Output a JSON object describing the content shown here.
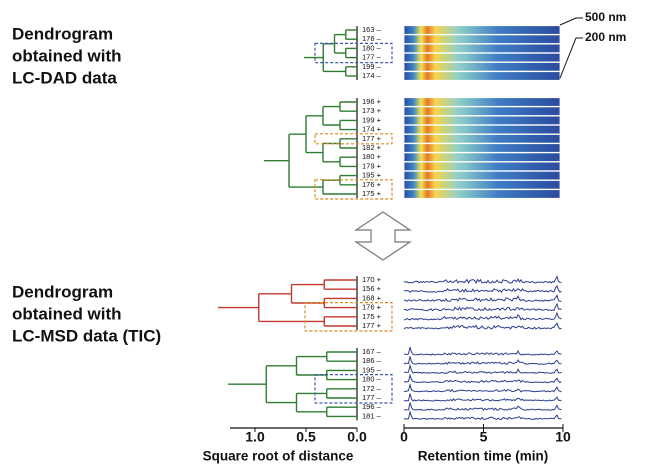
{
  "headings": [
    [
      "Dendrogram",
      "obtained with",
      "LC-DAD data"
    ],
    [
      "Dendrogram",
      "obtained with",
      "LC-MSD data (TIC)"
    ]
  ],
  "wavelengths": [
    "500 nm",
    "200 nm"
  ],
  "groups": [
    {
      "kind": "heatmap",
      "tree_color": "#2e7d32",
      "samples": [
        {
          "label": "163 –"
        },
        {
          "label": "176 –"
        },
        {
          "label": "180 –",
          "highlight": true
        },
        {
          "label": "177 –",
          "highlight": true
        },
        {
          "label": "199 –"
        },
        {
          "label": "174 –"
        }
      ],
      "boxes": [
        {
          "from": 2,
          "to": 3,
          "color": "#3b5bab"
        }
      ]
    },
    {
      "kind": "heatmap",
      "tree_color": "#2e7d32",
      "samples": [
        {
          "label": "196 +"
        },
        {
          "label": "173 +"
        },
        {
          "label": "199 +"
        },
        {
          "label": "174 +"
        },
        {
          "label": "177 +",
          "highlight": true
        },
        {
          "label": "182 +"
        },
        {
          "label": "180 +"
        },
        {
          "label": "179 +"
        },
        {
          "label": "195 +"
        },
        {
          "label": "176 +",
          "highlight": true
        },
        {
          "label": "175 +",
          "highlight": true
        }
      ],
      "boxes": [
        {
          "from": 4,
          "to": 4,
          "color": "#e08a1e"
        },
        {
          "from": 9,
          "to": 10,
          "color": "#e08a1e"
        }
      ]
    },
    {
      "kind": "chromatogram",
      "tree_color": "#c0392b",
      "samples": [
        {
          "label": "170 +"
        },
        {
          "label": "156 +"
        },
        {
          "label": "168 +"
        },
        {
          "label": "176 +",
          "highlight": true
        },
        {
          "label": "175 +",
          "highlight": true
        },
        {
          "label": "177 +",
          "highlight": true
        }
      ],
      "boxes": [
        {
          "from": 3,
          "to": 5,
          "color": "#e08a1e"
        }
      ]
    },
    {
      "kind": "chromatogram",
      "tree_color": "#2e7d32",
      "samples": [
        {
          "label": "167 –"
        },
        {
          "label": "186 –"
        },
        {
          "label": "195 –"
        },
        {
          "label": "180 –",
          "highlight": true
        },
        {
          "label": "172 –"
        },
        {
          "label": "177 –",
          "highlight": true
        },
        {
          "label": "196 –"
        },
        {
          "label": "181 –"
        }
      ],
      "boxes": [
        {
          "from": 3,
          "to": 5,
          "color": "#3b5bab"
        }
      ]
    }
  ],
  "distance_axis": {
    "title": "Square root of distance",
    "ticks": [
      {
        "value": 1,
        "label": "1.0"
      },
      {
        "value": 0.5,
        "label": "0.5"
      },
      {
        "value": 0,
        "label": "0.0"
      }
    ]
  },
  "time_axis": {
    "title": "Retention time (min)",
    "ticks": [
      0,
      5,
      10
    ]
  }
}
